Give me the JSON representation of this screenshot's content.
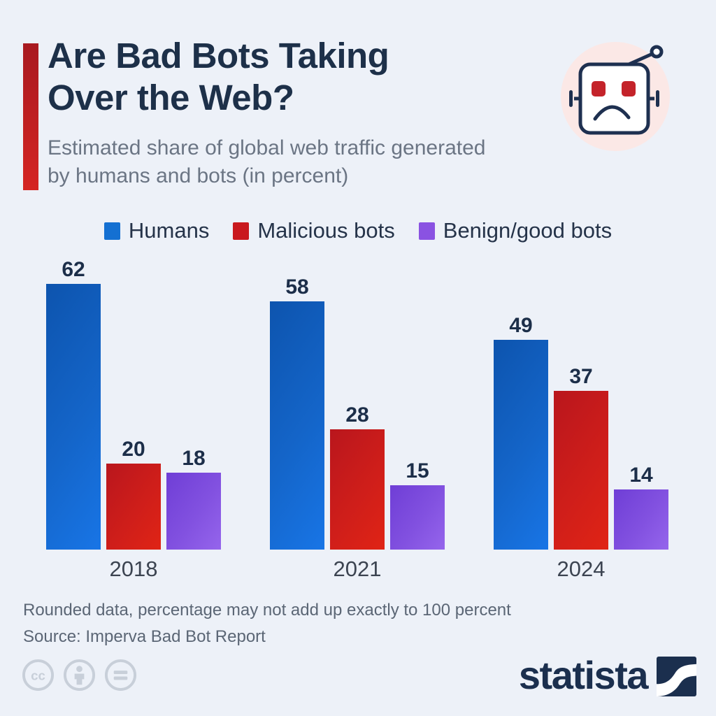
{
  "header": {
    "title_line1": "Are Bad Bots Taking",
    "title_line2": "Over the Web?",
    "subtitle_line1": "Estimated share of global web traffic generated",
    "subtitle_line2": "by humans and bots (in percent)"
  },
  "robot_icon": {
    "description": "sad robot face in pink circle",
    "bg_color": "#fbe8e6",
    "outline_color": "#1e3050",
    "eye_color": "#c4232a"
  },
  "legend": [
    {
      "label": "Humans",
      "color": "#1470d2"
    },
    {
      "label": "Malicious bots",
      "color": "#c9191e"
    },
    {
      "label": "Benign/good bots",
      "color": "#8a52e2"
    }
  ],
  "chart_data": {
    "type": "bar",
    "title": "Are Bad Bots Taking Over the Web?",
    "subtitle": "Estimated share of global web traffic generated by humans and bots (in percent)",
    "unit": "percent",
    "categories": [
      "2018",
      "2021",
      "2024"
    ],
    "series": [
      {
        "name": "Humans",
        "color": "#1470d2",
        "values": [
          62,
          58,
          49
        ]
      },
      {
        "name": "Malicious bots",
        "color": "#c9191e",
        "values": [
          20,
          28,
          37
        ]
      },
      {
        "name": "Benign/good bots",
        "color": "#8a52e2",
        "values": [
          18,
          15,
          14
        ]
      }
    ],
    "ylim": [
      0,
      62
    ],
    "grid": false,
    "value_labels": true,
    "legend_position": "top"
  },
  "footer": {
    "footnote": "Rounded data, percentage may not add up exactly to 100 percent",
    "source": "Source: Imperva Bad Bot Report"
  },
  "license_icons": [
    {
      "name": "cc-icon"
    },
    {
      "name": "attribution-person-icon"
    },
    {
      "name": "equals-nd-icon"
    }
  ],
  "branding": {
    "logo_text": "statista"
  },
  "colors": {
    "background": "#edf1f8",
    "title_navy": "#1d3049",
    "subtitle_gray": "#6b7584",
    "accent_red": "#c92020",
    "footnote_gray": "#5b6675",
    "license_gray": "#c8cfd9",
    "logo_navy": "#1b2f4e"
  }
}
